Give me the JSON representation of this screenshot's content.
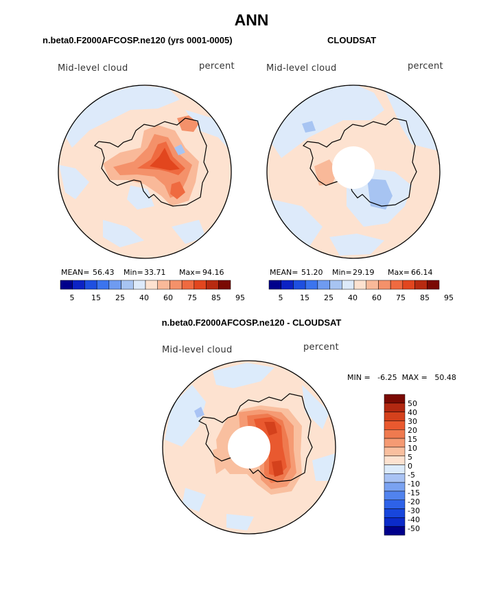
{
  "title": "ANN",
  "colors": {
    "abs_scale": [
      "#00008b",
      "#0c22c4",
      "#1e4fe0",
      "#3b74ee",
      "#6f9bf0",
      "#a7c4f2",
      "#ddeafa",
      "#fde2d0",
      "#f9b999",
      "#f4916a",
      "#ef6a40",
      "#e2461e",
      "#b72a10",
      "#7a0a03"
    ],
    "diff_scale": [
      "#00008b",
      "#0b2bc9",
      "#1746dc",
      "#2e62e8",
      "#5183ee",
      "#7aa2f1",
      "#a9c3f4",
      "#dcebfb",
      "#fde2d0",
      "#f9bf9f",
      "#f59a73",
      "#ef7a4f",
      "#e9592f",
      "#d4411c",
      "#b22811",
      "#7a0a03"
    ],
    "coast": "#000000"
  },
  "chart_data": [
    {
      "type": "heatmap",
      "projection": "south-polar-stereographic",
      "title": "n.beta0.F2000AFCOSP.ne120 (yrs 0001-0005)",
      "left_label": "Mid-level cloud",
      "right_label": "percent",
      "stats": {
        "mean_label": "MEAN=",
        "mean": "56.43",
        "min_label": "Min=",
        "min": "33.71",
        "max_label": "Max=",
        "max": "94.16"
      },
      "colorbar_ticks": [
        "5",
        "15",
        "25",
        "40",
        "60",
        "75",
        "85",
        "95"
      ]
    },
    {
      "type": "heatmap",
      "projection": "south-polar-stereographic",
      "title": "CLOUDSAT",
      "left_label": "Mid-level cloud",
      "right_label": "percent",
      "stats": {
        "mean_label": "MEAN=",
        "mean": "51.20",
        "min_label": "Min=",
        "min": "29.19",
        "max_label": "Max=",
        "max": "66.14"
      },
      "colorbar_ticks": [
        "5",
        "15",
        "25",
        "40",
        "60",
        "75",
        "85",
        "95"
      ]
    },
    {
      "type": "heatmap",
      "projection": "south-polar-stereographic",
      "title": "n.beta0.F2000AFCOSP.ne120 - CLOUDSAT",
      "left_label": "Mid-level cloud",
      "right_label": "percent",
      "stats_text": "MIN =   -6.25  MAX =   50.48",
      "colorbar_ticks": [
        "50",
        "40",
        "30",
        "20",
        "15",
        "10",
        "5",
        "0",
        "-5",
        "-10",
        "-15",
        "-20",
        "-30",
        "-40",
        "-50"
      ]
    }
  ]
}
